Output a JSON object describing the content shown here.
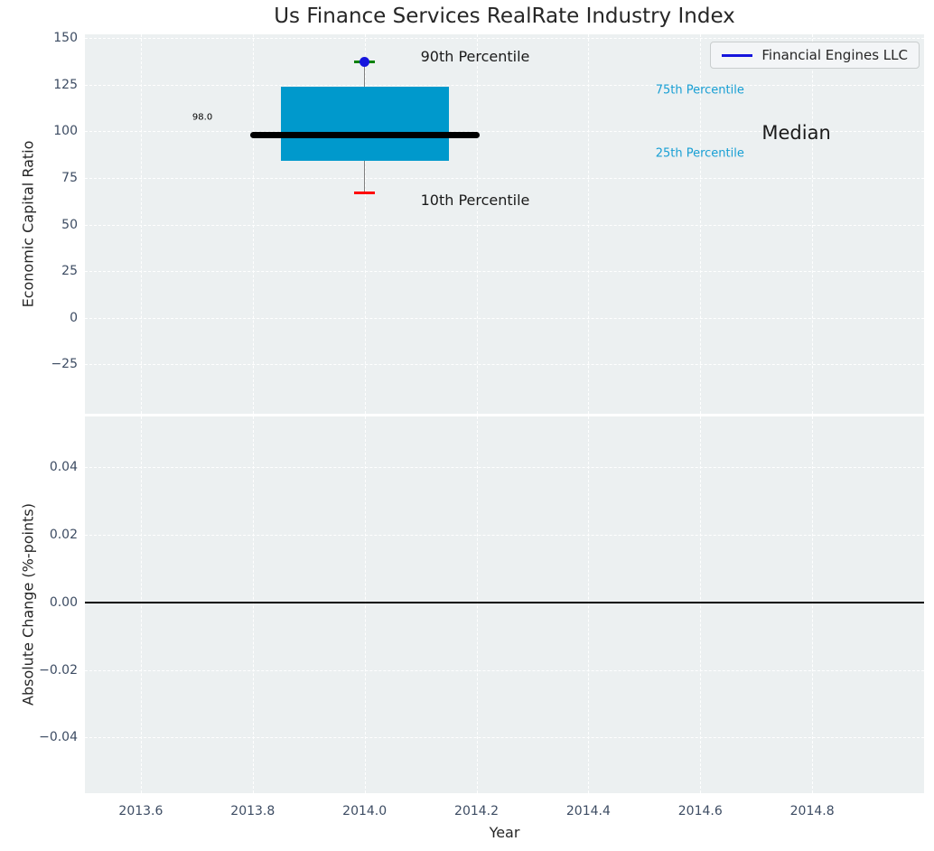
{
  "figure": {
    "title": "Us Finance Services RealRate Industry Index",
    "legend": {
      "label": "Financial Engines LLC",
      "position": "upper right"
    },
    "colors": {
      "plot_background": "#ecf0f1",
      "grid": "#ffffff",
      "tick_label": "#3d4c63",
      "text": "#262626",
      "box_fill": "#0099cc",
      "cyan_label": "#189fd4",
      "median_line": "#000000",
      "whisker": "#808080",
      "p90_cap": "#008000",
      "p10_cap": "#ff0000",
      "company_marker": "#1515dd",
      "zero_line": "#000000"
    }
  },
  "chart_data": [
    {
      "type": "boxplot",
      "title": "Us Finance Services RealRate Industry Index",
      "ylabel": "Economic Capital Ratio",
      "grid": true,
      "legend": {
        "entries": [
          "Financial Engines LLC"
        ],
        "position": "upper right"
      },
      "xlim": [
        2013.5,
        2015.0
      ],
      "ylim": [
        -51.5,
        152
      ],
      "yticks": [
        {
          "v": 150,
          "label": "150"
        },
        {
          "v": 125,
          "label": "125"
        },
        {
          "v": 100,
          "label": "100"
        },
        {
          "v": 75,
          "label": "75"
        },
        {
          "v": 50,
          "label": "50"
        },
        {
          "v": 25,
          "label": "25"
        },
        {
          "v": 0,
          "label": "0"
        },
        {
          "v": -25,
          "label": "−25"
        }
      ],
      "xticks": [
        {
          "v": 2013.6,
          "label": ""
        },
        {
          "v": 2013.8,
          "label": ""
        },
        {
          "v": 2014.0,
          "label": ""
        },
        {
          "v": 2014.2,
          "label": ""
        },
        {
          "v": 2014.4,
          "label": ""
        },
        {
          "v": 2014.6,
          "label": ""
        },
        {
          "v": 2014.8,
          "label": ""
        }
      ],
      "box": {
        "x": 2014.0,
        "p10": 67,
        "p25": 84,
        "median": 98,
        "p75": 124,
        "p90": 137,
        "company_value": 137,
        "median_annotation": "98.0",
        "box_half_width": 0.15,
        "median_half_width": 0.205,
        "cap_half_width": 0.019
      },
      "annotations": [
        {
          "id": "p90-label",
          "text": "90th Percentile",
          "x": 2014.1,
          "y": 140.0,
          "size": 16,
          "color": "#1a1a1a",
          "anchor": "left"
        },
        {
          "id": "p75-label",
          "text": "75th Percentile",
          "x": 2014.52,
          "y": 121.5,
          "size": 13,
          "color": "#189fd4",
          "anchor": "left"
        },
        {
          "id": "median-label",
          "text": "Median",
          "x": 2014.71,
          "y": 99.0,
          "size": 21,
          "color": "#1a1a1a",
          "anchor": "left"
        },
        {
          "id": "p25-label",
          "text": "25th Percentile",
          "x": 2014.52,
          "y": 87.5,
          "size": 13,
          "color": "#189fd4",
          "anchor": "left"
        },
        {
          "id": "p10-label",
          "text": "10th Percentile",
          "x": 2014.1,
          "y": 63.0,
          "size": 16,
          "color": "#1a1a1a",
          "anchor": "left"
        },
        {
          "id": "median-value",
          "text": "98.0",
          "x": 2013.71,
          "y": 107.5,
          "size": 10,
          "color": "#000000",
          "anchor": "center"
        }
      ]
    },
    {
      "type": "line",
      "ylabel": "Absolute Change (%-points)",
      "xlabel": "Year",
      "grid": true,
      "xlim": [
        2013.5,
        2015.0
      ],
      "ylim": [
        -0.0565,
        0.0551
      ],
      "yticks": [
        {
          "v": 0.04,
          "label": "0.04"
        },
        {
          "v": 0.02,
          "label": "0.02"
        },
        {
          "v": 0.0,
          "label": "0.00"
        },
        {
          "v": -0.02,
          "label": "−0.02"
        },
        {
          "v": -0.04,
          "label": "−0.04"
        }
      ],
      "xticks": [
        {
          "v": 2013.6,
          "label": "2013.6"
        },
        {
          "v": 2013.8,
          "label": "2013.8"
        },
        {
          "v": 2014.0,
          "label": "2014.0"
        },
        {
          "v": 2014.2,
          "label": "2014.2"
        },
        {
          "v": 2014.4,
          "label": "2014.4"
        },
        {
          "v": 2014.6,
          "label": "2014.6"
        },
        {
          "v": 2014.8,
          "label": "2014.8"
        }
      ],
      "series": [],
      "zero_line": 0.0
    }
  ]
}
